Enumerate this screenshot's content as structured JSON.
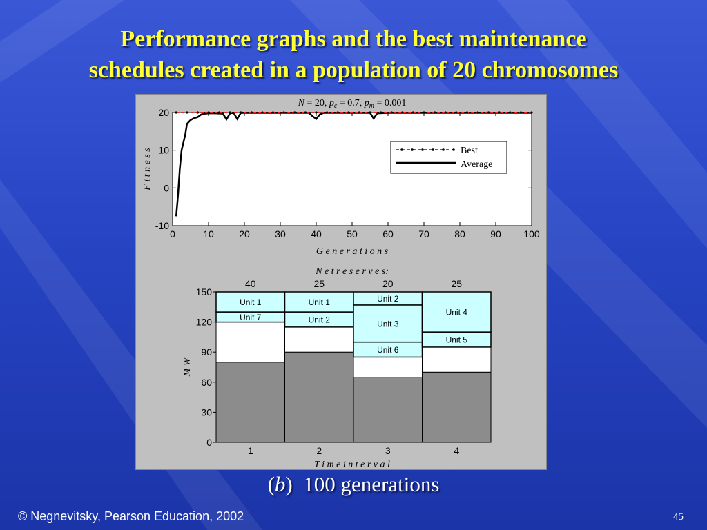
{
  "slide": {
    "title_line1": "Performance graphs and the best maintenance",
    "title_line2": "schedules created in a population of 20 chromosomes",
    "caption_letter": "b",
    "caption_open": "(",
    "caption_close": ")",
    "caption_text": "100 generations",
    "footer": "© Negnevitsky, Pearson Education, 2002",
    "page_number": "45"
  },
  "colors": {
    "best": "#ff2020",
    "average": "#000000",
    "unit_fill": "#ccffff",
    "reserve_fill": "#ffffff",
    "base_fill": "#8c8c8c",
    "title": "#ffff33"
  },
  "chart_data": [
    {
      "type": "line",
      "title_parts": {
        "n_label": "N",
        "n_value": " = 20,  ",
        "pc_label": "p",
        "pc_sub": "c",
        "pc_value": " = 0.7,  ",
        "pm_label": "p",
        "pm_sub": "m",
        "pm_value": " = 0.001"
      },
      "xlabel": "G e n e r a t i o n s",
      "ylabel": "F i t n e s s",
      "xlim": [
        0,
        100
      ],
      "ylim": [
        -10,
        20
      ],
      "x_ticks": [
        0,
        10,
        20,
        30,
        40,
        50,
        60,
        70,
        80,
        90,
        100
      ],
      "y_ticks": [
        -10,
        0,
        10,
        20
      ],
      "legend_position": "right",
      "series": [
        {
          "name": "Best",
          "style": "dotted-red",
          "x": [
            1,
            100
          ],
          "y": [
            20,
            20
          ]
        },
        {
          "name": "Average",
          "style": "solid-black",
          "x": [
            1,
            1.5,
            2,
            2.5,
            3,
            3.5,
            4,
            5,
            6,
            7,
            8,
            9,
            10,
            12,
            14,
            15,
            16,
            17,
            18,
            19,
            20,
            25,
            30,
            35,
            38,
            39,
            40,
            41,
            42,
            45,
            50,
            55,
            56,
            57,
            60,
            70,
            80,
            90,
            100
          ],
          "y": [
            -7.5,
            -2,
            5,
            10,
            12,
            14,
            17,
            18,
            18.5,
            18.8,
            19.5,
            19.7,
            19.8,
            19.8,
            19.7,
            18.2,
            19.8,
            19.9,
            18.3,
            19.9,
            19.9,
            19.9,
            19.9,
            19.9,
            19.9,
            19,
            18.3,
            19.5,
            19.9,
            19.9,
            19.9,
            19.9,
            18.4,
            19.8,
            19.9,
            19.9,
            19.9,
            19.9,
            19.9
          ]
        }
      ]
    },
    {
      "type": "bar",
      "title": "N e t   r e s e r v e s:",
      "xlabel": "T i m e   i n t e r v a l",
      "ylabel": "M W",
      "ylim": [
        0,
        150
      ],
      "y_ticks": [
        0,
        30,
        60,
        90,
        120,
        150
      ],
      "categories": [
        "1",
        "2",
        "3",
        "4"
      ],
      "net_reserves": [
        "40",
        "25",
        "20",
        "25"
      ],
      "stacks": [
        {
          "base": 80,
          "segments": [
            {
              "label": "Unit 7",
              "from": 120,
              "to": 130
            },
            {
              "label": "Unit 1",
              "from": 130,
              "to": 150
            }
          ]
        },
        {
          "base": 90,
          "segments": [
            {
              "label": "Unit 2",
              "from": 115,
              "to": 130
            },
            {
              "label": "Unit 1",
              "from": 130,
              "to": 150
            }
          ]
        },
        {
          "base": 65,
          "segments": [
            {
              "label": "Unit 6",
              "from": 85,
              "to": 100
            },
            {
              "label": "Unit 3",
              "from": 100,
              "to": 137
            },
            {
              "label": "Unit 2",
              "from": 137,
              "to": 150
            }
          ]
        },
        {
          "base": 70,
          "segments": [
            {
              "label": "Unit 5",
              "from": 95,
              "to": 110
            },
            {
              "label": "Unit 4",
              "from": 110,
              "to": 150
            }
          ]
        }
      ]
    }
  ]
}
